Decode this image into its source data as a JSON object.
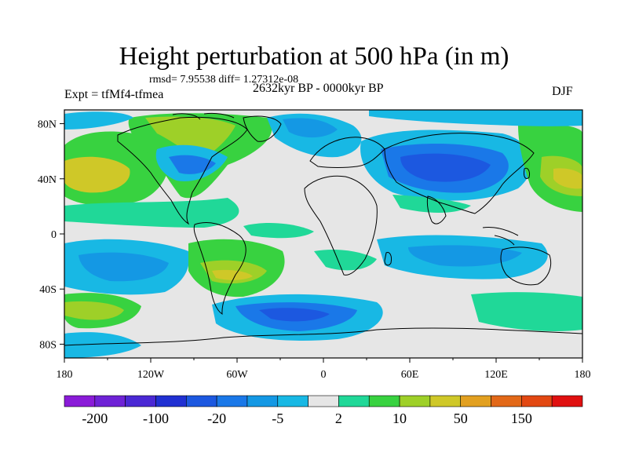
{
  "title": "Height perturbation at 500 hPa (in m)",
  "stats": {
    "rmsd_label": "rmsd=",
    "rmsd": "7.95538",
    "diff_label": "diff=",
    "diff": "1.27312e-08"
  },
  "expt": "Expt = tfMf4-tfmea",
  "period": "2632kyr BP - 0000kyr BP",
  "season": "DJF",
  "axes": {
    "x_ticks": [
      "180",
      "120W",
      "60W",
      "0",
      "60E",
      "120E",
      "180"
    ],
    "y_ticks": [
      "80N",
      "40N",
      "0",
      "40S",
      "80S"
    ]
  },
  "colorbar": {
    "colors": [
      "#8a1bd8",
      "#6e22d6",
      "#4a28d4",
      "#2030d2",
      "#1c58e0",
      "#1a78e8",
      "#1498e4",
      "#18b8e4",
      "#e6e6e6",
      "#20d898",
      "#38d240",
      "#9ed028",
      "#cfc828",
      "#e2a020",
      "#e26818",
      "#e24812",
      "#e01010"
    ],
    "labels": [
      "-200",
      "-100",
      "-20",
      "-5",
      "2",
      "10",
      "50",
      "150"
    ]
  },
  "colors": {
    "land_outline": "#000000",
    "neutral": "#e6e6e6"
  }
}
